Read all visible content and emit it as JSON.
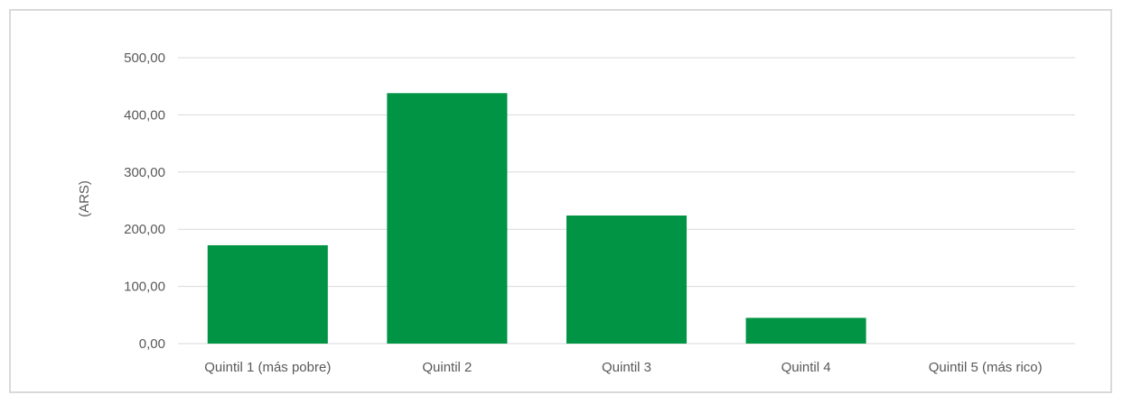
{
  "chart_data": {
    "type": "bar",
    "title": "",
    "xlabel": "",
    "ylabel": "(ARS)",
    "categories": [
      "Quintil 1 (más pobre)",
      "Quintil 2",
      "Quintil 3",
      "Quintil 4",
      "Quintil 5 (más rico)"
    ],
    "values": [
      172,
      438,
      224,
      45,
      0
    ],
    "ylim": [
      0,
      500
    ],
    "yticks": [
      0,
      100,
      200,
      300,
      400,
      500
    ],
    "ytick_labels": [
      "0,00",
      "100,00",
      "200,00",
      "300,00",
      "400,00",
      "500,00"
    ],
    "grid": true,
    "legend": "none",
    "bar_color": "#009444",
    "grid_color": "#d9d9d9"
  }
}
